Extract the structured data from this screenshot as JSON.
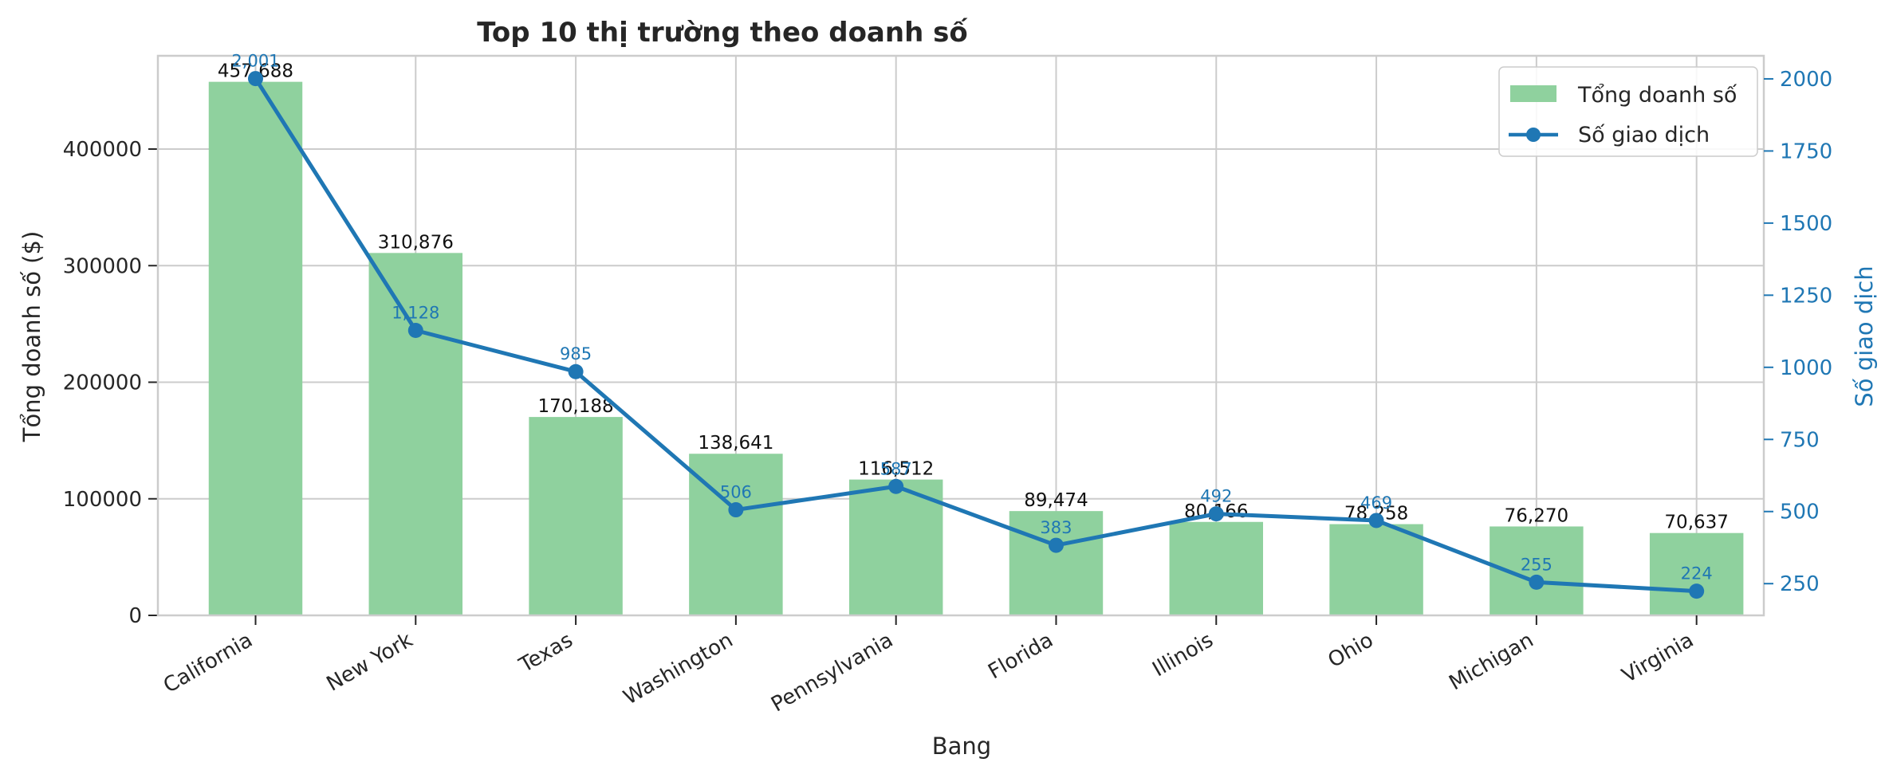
{
  "chart_data": {
    "type": "bar",
    "title": "Top 10 thị trường theo doanh số",
    "xlabel": "Bang",
    "ylabel": "Tổng doanh số ($)",
    "ylabel_right": "Số giao dịch",
    "categories": [
      "California",
      "New York",
      "Texas",
      "Washington",
      "Pennsylvania",
      "Florida",
      "Illinois",
      "Ohio",
      "Michigan",
      "Virginia"
    ],
    "ylim": [
      0,
      480000
    ],
    "yticks": [
      0,
      100000,
      200000,
      300000,
      400000
    ],
    "ytick_labels": [
      "0",
      "100000",
      "200000",
      "300000",
      "400000"
    ],
    "ylim_right": [
      140,
      2080
    ],
    "yticks_right": [
      250,
      500,
      750,
      1000,
      1250,
      1500,
      1750,
      2000
    ],
    "ytick_labels_right": [
      "250",
      "500",
      "750",
      "1000",
      "1250",
      "1500",
      "1750",
      "2000"
    ],
    "grid": true,
    "legend_position": "top-right",
    "series": [
      {
        "name": "Tổng doanh số",
        "type": "bar",
        "axis": "left",
        "color": "#8fd19e",
        "values": [
          457688,
          310876,
          170188,
          138641,
          116512,
          89474,
          80166,
          78258,
          76270,
          70637
        ],
        "labels": [
          "457,688",
          "310,876",
          "170,188",
          "138,641",
          "116,512",
          "89,474",
          "80,166",
          "78,258",
          "76,270",
          "70,637"
        ]
      },
      {
        "name": "Số giao dịch",
        "type": "line",
        "axis": "right",
        "color": "#1f77b4",
        "values": [
          2001,
          1128,
          985,
          506,
          587,
          383,
          492,
          469,
          255,
          224
        ],
        "labels": [
          "2,001",
          "1,128",
          "985",
          "506",
          "587",
          "383",
          "492",
          "469",
          "255",
          "224"
        ]
      }
    ]
  }
}
